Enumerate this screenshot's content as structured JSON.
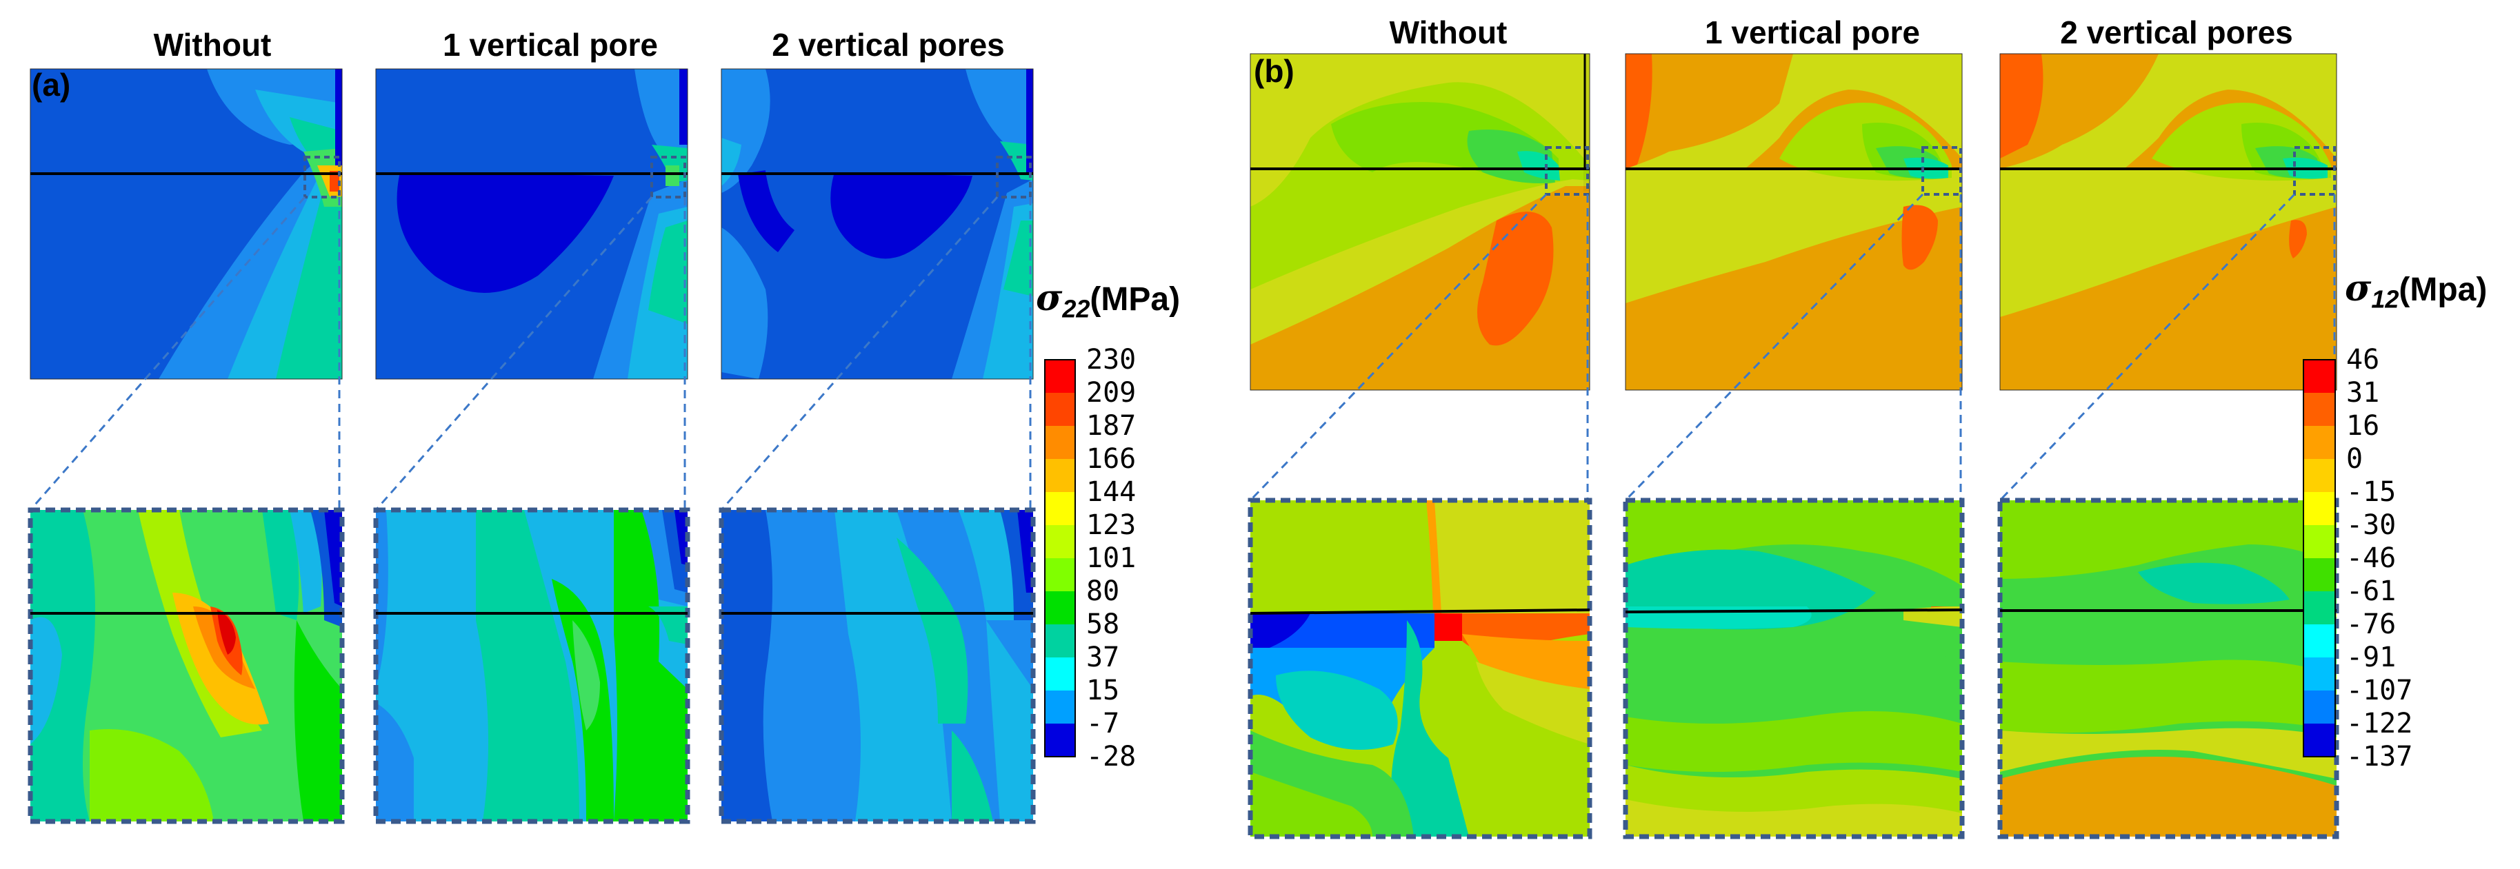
{
  "panel_a": {
    "tag": "(a)",
    "columns": [
      "Without",
      "1 vertical pore",
      "2 vertical pores"
    ],
    "colorbar": {
      "symbol": "σ",
      "subscript": "22",
      "unit": "(MPa)",
      "ticks": [
        "230",
        "209",
        "187",
        "166",
        "144",
        "123",
        "101",
        "80",
        "58",
        "37",
        "15",
        "-7",
        "-28"
      ]
    }
  },
  "panel_b": {
    "tag": "(b)",
    "columns": [
      "Without",
      "1 vertical pore",
      "2 vertical pores"
    ],
    "colorbar": {
      "symbol": "σ",
      "subscript": "12",
      "unit": "(Mpa)",
      "ticks": [
        "46",
        "31",
        "16",
        "0",
        "-15",
        "-30",
        "-46",
        "-61",
        "-76",
        "-91",
        "-107",
        "-122",
        "-137"
      ]
    }
  },
  "colors": {
    "scale": [
      "#ff0000",
      "#ff4500",
      "#ff8c00",
      "#ffc000",
      "#ffff00",
      "#c0ff00",
      "#80ff00",
      "#00e000",
      "#00d2a0",
      "#00ffff",
      "#00a0ff",
      "#0050ff",
      "#0000e0"
    ],
    "a_bg": "#0a56d8",
    "a_dark": "#0000d6",
    "b_bg": "#cddc14",
    "b_orange": "#ff9b00",
    "frame_dash": "#3a5a8c",
    "zoom_line": "#3c78c8"
  }
}
